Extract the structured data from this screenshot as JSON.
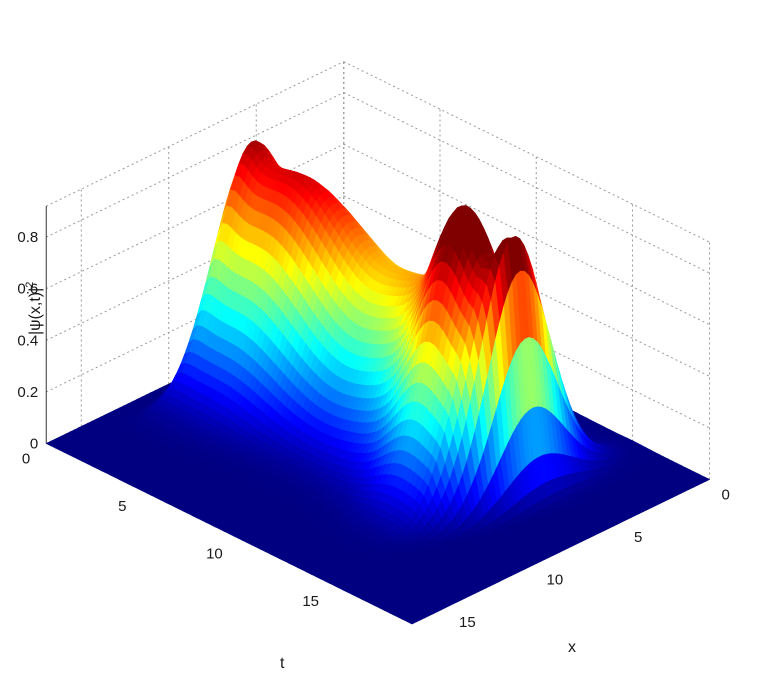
{
  "chart_data": {
    "type": "surface3d",
    "title": "",
    "xlabel": "x",
    "ylabel": "t",
    "zlabel": "|ψ(x,t)|",
    "zlabel_superscript": "2",
    "x_range": [
      0,
      17
    ],
    "t_range": [
      0,
      19
    ],
    "z_range": [
      0,
      0.92
    ],
    "x_ticks": [
      "0",
      "5",
      "10",
      "15"
    ],
    "x_tick_values": [
      0,
      5,
      10,
      15
    ],
    "t_ticks": [
      "0",
      "5",
      "10",
      "15"
    ],
    "t_tick_values": [
      0,
      5,
      10,
      15
    ],
    "z_ticks": [
      "0",
      "0.2",
      "0.4",
      "0.6",
      "0.8"
    ],
    "z_tick_values": [
      0,
      0.2,
      0.4,
      0.6,
      0.8
    ],
    "colormap": "jet",
    "grid": true,
    "peaks": [
      {
        "t": 1.5,
        "x": 6.5,
        "z": 0.89
      },
      {
        "t": 3.5,
        "x": 6.8,
        "z": 0.81
      },
      {
        "t": 7.5,
        "x": 7.5,
        "z": 0.64
      },
      {
        "t": 12.5,
        "x": 8.0,
        "z": 0.91
      },
      {
        "t": 14.8,
        "x": 6.5,
        "z": 0.38
      }
    ]
  }
}
